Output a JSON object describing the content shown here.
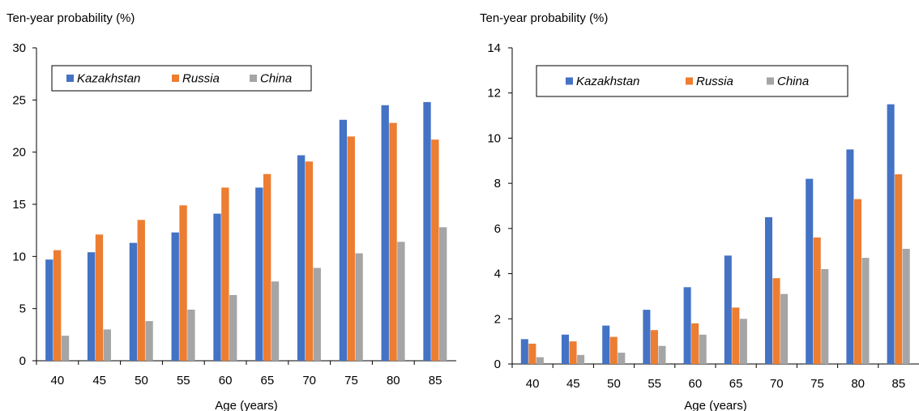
{
  "colors": {
    "kazakhstan": "#4472C4",
    "russia": "#ED7D31",
    "china": "#A5A5A5"
  },
  "chart_data": [
    {
      "type": "bar",
      "title": "",
      "ylabel": "Ten-year probability (%)",
      "xlabel": "Age (years)",
      "categories": [
        "40",
        "45",
        "50",
        "55",
        "60",
        "65",
        "70",
        "75",
        "80",
        "85"
      ],
      "ylim": [
        0,
        30
      ],
      "yticks": [
        "0",
        "5",
        "10",
        "15",
        "20",
        "25",
        "30"
      ],
      "grid": false,
      "legend_placement": "top-left",
      "series": [
        {
          "name": "Kazakhstan",
          "color_key": "kazakhstan",
          "values": [
            9.7,
            10.4,
            11.3,
            12.3,
            14.1,
            16.6,
            19.7,
            23.1,
            24.5,
            24.8
          ]
        },
        {
          "name": "Russia",
          "color_key": "russia",
          "values": [
            10.6,
            12.1,
            13.5,
            14.9,
            16.6,
            17.9,
            19.1,
            21.5,
            22.8,
            21.2
          ]
        },
        {
          "name": "China",
          "color_key": "china",
          "values": [
            2.4,
            3.0,
            3.8,
            4.9,
            6.3,
            7.6,
            8.9,
            10.3,
            11.4,
            12.8
          ]
        }
      ]
    },
    {
      "type": "bar",
      "title": "",
      "ylabel": "Ten-year probability (%)",
      "xlabel": "Age (years)",
      "categories": [
        "40",
        "45",
        "50",
        "55",
        "60",
        "65",
        "70",
        "75",
        "80",
        "85"
      ],
      "ylim": [
        0,
        14
      ],
      "yticks": [
        "0",
        "2",
        "4",
        "6",
        "8",
        "10",
        "12",
        "14"
      ],
      "grid": false,
      "legend_placement": "top-left",
      "series": [
        {
          "name": "Kazakhstan",
          "color_key": "kazakhstan",
          "values": [
            1.1,
            1.3,
            1.7,
            2.4,
            3.4,
            4.8,
            6.5,
            8.2,
            9.5,
            11.5
          ]
        },
        {
          "name": "Russia",
          "color_key": "russia",
          "values": [
            0.9,
            1.0,
            1.2,
            1.5,
            1.8,
            2.5,
            3.8,
            5.6,
            7.3,
            8.4
          ]
        },
        {
          "name": "China",
          "color_key": "china",
          "values": [
            0.3,
            0.4,
            0.5,
            0.8,
            1.3,
            2.0,
            3.1,
            4.2,
            4.7,
            5.1
          ]
        }
      ]
    }
  ]
}
